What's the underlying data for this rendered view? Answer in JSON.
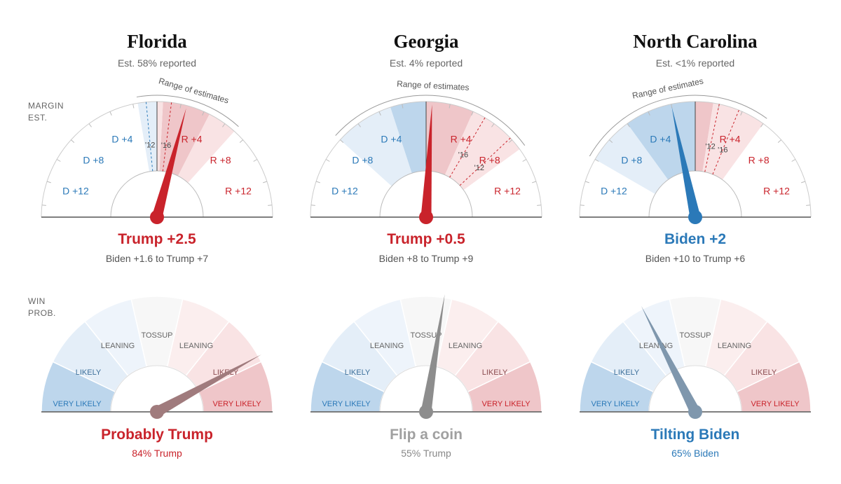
{
  "side_labels": {
    "margin": [
      "MARGIN",
      "EST."
    ],
    "win": [
      "WIN",
      "PROB."
    ]
  },
  "colors": {
    "dem": "#2b79b8",
    "rep": "#c9232b",
    "gray": "#9b9b9b",
    "dem_light": "#e4eef8",
    "dem_mid": "#bdd6ec",
    "rep_light": "#f9e3e4",
    "rep_mid": "#efc6c9"
  },
  "margin_range_label": "Range of estimates",
  "margin_ticks": [
    "D +12",
    "D +8",
    "D +4",
    "R +4",
    "R +8",
    "R +12"
  ],
  "margin_tick_values": [
    -12,
    -8,
    -4,
    4,
    8,
    12
  ],
  "prob_labels": [
    "VERY LIKELY",
    "LIKELY",
    "LEANING",
    "TOSSUP",
    "LEANING",
    "LIKELY",
    "VERY LIKELY"
  ],
  "chart_data": [
    {
      "type": "gauge",
      "title": "Florida",
      "reported": "Est. 58% reported",
      "margin": {
        "range_min": -15,
        "range_max": 15,
        "estimate": 2.5,
        "estimate_label": "Trump +2.5",
        "range_low": -1.6,
        "range_high": 7,
        "range_text": "Biden +1.6 to Trump +7",
        "band50_low": 0.5,
        "band50_high": 4.5,
        "past_results": [
          {
            "label": "'12",
            "value": -0.9
          },
          {
            "label": "'16",
            "value": 1.2
          }
        ]
      },
      "win_probability": {
        "value": 84,
        "candidate": "Trump",
        "label": "Probably Trump",
        "detail": "84% Trump"
      }
    },
    {
      "type": "gauge",
      "title": "Georgia",
      "reported": "Est. 4% reported",
      "margin": {
        "range_min": -15,
        "range_max": 15,
        "estimate": 0.5,
        "estimate_label": "Trump +0.5",
        "range_low": -8,
        "range_high": 9,
        "range_text": "Biden +8 to Trump +9",
        "band50_low": -3,
        "band50_high": 4,
        "past_results": [
          {
            "label": "'16",
            "value": 5.1
          },
          {
            "label": "'12",
            "value": 7.8
          }
        ]
      },
      "win_probability": {
        "value": 55,
        "candidate": "Trump",
        "label": "Flip a coin",
        "detail": "55% Trump"
      }
    },
    {
      "type": "gauge",
      "title": "North Carolina",
      "reported": "Est. <1% reported",
      "margin": {
        "range_min": -15,
        "range_max": 15,
        "estimate": -2,
        "estimate_label": "Biden +2",
        "range_low": -10,
        "range_high": 6,
        "range_text": "Biden +10 to Trump +6",
        "band50_low": -6,
        "band50_high": 1.5,
        "past_results": [
          {
            "label": "'12",
            "value": 2.0
          },
          {
            "label": "'16",
            "value": 3.7
          }
        ]
      },
      "win_probability": {
        "value": 65,
        "candidate": "Biden",
        "label": "Tilting Biden",
        "detail": "65% Biden"
      }
    }
  ]
}
